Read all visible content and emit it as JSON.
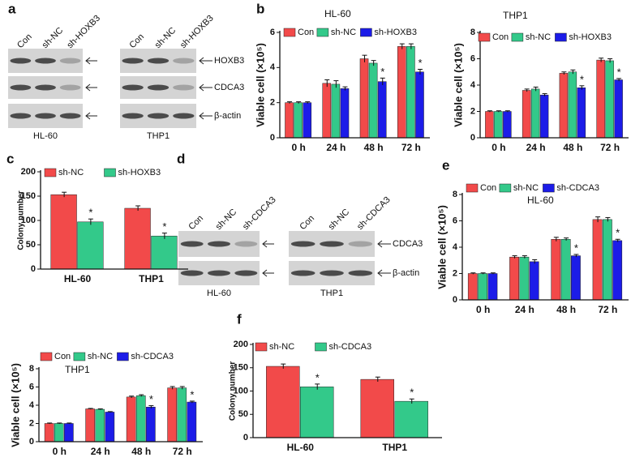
{
  "panel_labels": [
    "a",
    "b",
    "c",
    "d",
    "e",
    "f"
  ],
  "blot_a": {
    "lanes": [
      "Con",
      "sh-NC",
      "sh-HOXB3"
    ],
    "bands": [
      "HOXB3",
      "CDCA3",
      "β-actin"
    ],
    "cell_lines": [
      "HL-60",
      "THP1"
    ]
  },
  "blot_d": {
    "lanes": [
      "Con",
      "sh-NC",
      "sh-CDCA3"
    ],
    "bands": [
      "CDCA3",
      "β-actin"
    ],
    "cell_lines": [
      "HL-60",
      "THP1"
    ]
  },
  "chart_data": [
    {
      "type": "bar",
      "title": "HL-60",
      "y_label": "Viable cell (×10⁵)",
      "categories": [
        "0 h",
        "24 h",
        "48 h",
        "72 h"
      ],
      "ylim": [
        0,
        6
      ],
      "yticks": [
        0,
        2,
        4,
        6
      ],
      "series": [
        {
          "name": "Con",
          "color": "#f24a4a",
          "values": [
            2,
            3.1,
            4.5,
            5.2
          ],
          "errors": [
            0.05,
            0.2,
            0.2,
            0.15
          ]
        },
        {
          "name": "sh-NC",
          "color": "#33c98a",
          "values": [
            2,
            3.05,
            4.25,
            5.2
          ],
          "errors": [
            0.05,
            0.2,
            0.15,
            0.15
          ]
        },
        {
          "name": "sh-HOXB3",
          "color": "#1c1ce8",
          "values": [
            2,
            2.8,
            3.2,
            3.75
          ],
          "errors": [
            0.05,
            0.1,
            0.2,
            0.15
          ],
          "significance": [
            null,
            null,
            "*",
            "*"
          ]
        }
      ]
    },
    {
      "type": "bar",
      "title": "THP1",
      "y_label": "Viable cell (×10⁵)",
      "categories": [
        "0 h",
        "24 h",
        "48 h",
        "72 h"
      ],
      "ylim": [
        0,
        8
      ],
      "yticks": [
        0,
        2,
        4,
        6,
        8
      ],
      "series": [
        {
          "name": "Con",
          "color": "#f24a4a",
          "values": [
            2,
            3.6,
            4.9,
            5.9
          ],
          "errors": [
            0.05,
            0.1,
            0.1,
            0.15
          ]
        },
        {
          "name": "sh-NC",
          "color": "#33c98a",
          "values": [
            2,
            3.7,
            5.0,
            5.85
          ],
          "errors": [
            0.05,
            0.15,
            0.15,
            0.15
          ]
        },
        {
          "name": "sh-HOXB3",
          "color": "#1c1ce8",
          "values": [
            2,
            3.25,
            3.8,
            4.4
          ],
          "errors": [
            0.05,
            0.1,
            0.15,
            0.1
          ],
          "significance": [
            null,
            null,
            "*",
            "*"
          ]
        }
      ]
    },
    {
      "type": "bar",
      "y_label": "Colony number",
      "categories": [
        "HL-60",
        "THP1"
      ],
      "ylim": [
        0,
        200
      ],
      "yticks": [
        0,
        50,
        100,
        150,
        200
      ],
      "series": [
        {
          "name": "sh-NC",
          "color": "#f24a4a",
          "values": [
            153,
            125
          ],
          "errors": [
            5,
            5
          ]
        },
        {
          "name": "sh-HOXB3",
          "color": "#33c98a",
          "values": [
            97,
            68
          ],
          "errors": [
            6,
            6
          ],
          "significance": [
            "*",
            "*"
          ]
        }
      ]
    },
    {
      "type": "bar",
      "title": "HL-60",
      "y_label": "Viable cell (×10⁵)",
      "categories": [
        "0 h",
        "24 h",
        "48 h",
        "72 h"
      ],
      "ylim": [
        0,
        8
      ],
      "yticks": [
        0,
        2,
        4,
        6,
        8
      ],
      "series": [
        {
          "name": "Con",
          "color": "#f24a4a",
          "values": [
            2,
            3.25,
            4.6,
            6.1
          ],
          "errors": [
            0.05,
            0.1,
            0.15,
            0.2
          ]
        },
        {
          "name": "sh-NC",
          "color": "#33c98a",
          "values": [
            2,
            3.25,
            4.6,
            6.1
          ],
          "errors": [
            0.05,
            0.1,
            0.1,
            0.15
          ]
        },
        {
          "name": "sh-CDCA3",
          "color": "#1c1ce8",
          "values": [
            2,
            2.9,
            3.35,
            4.5
          ],
          "errors": [
            0.05,
            0.15,
            0.1,
            0.1
          ],
          "significance": [
            null,
            null,
            "*",
            "*"
          ]
        }
      ]
    },
    {
      "type": "bar",
      "title": "THP1",
      "y_label": "Viable cell (×10⁵)",
      "categories": [
        "0 h",
        "24 h",
        "48 h",
        "72 h"
      ],
      "ylim": [
        0,
        8
      ],
      "yticks": [
        0,
        2,
        4,
        6,
        8
      ],
      "series": [
        {
          "name": "Con",
          "color": "#f24a4a",
          "values": [
            2,
            3.6,
            4.9,
            5.9
          ],
          "errors": [
            0.05,
            0.05,
            0.1,
            0.15
          ]
        },
        {
          "name": "sh-NC",
          "color": "#33c98a",
          "values": [
            2,
            3.55,
            5.05,
            5.9
          ],
          "errors": [
            0.05,
            0.05,
            0.1,
            0.15
          ]
        },
        {
          "name": "sh-CDCA3",
          "color": "#1c1ce8",
          "values": [
            2,
            3.25,
            3.8,
            4.35
          ],
          "errors": [
            0.05,
            0.05,
            0.15,
            0.1
          ],
          "significance": [
            null,
            null,
            "*",
            "*"
          ]
        }
      ]
    },
    {
      "type": "bar",
      "y_label": "Colony number",
      "categories": [
        "HL-60",
        "THP1"
      ],
      "ylim": [
        0,
        200
      ],
      "yticks": [
        0,
        50,
        100,
        150,
        200
      ],
      "series": [
        {
          "name": "sh-NC",
          "color": "#f24a4a",
          "values": [
            153,
            125
          ],
          "errors": [
            5,
            5
          ]
        },
        {
          "name": "sh-CDCA3",
          "color": "#33c98a",
          "values": [
            109,
            78
          ],
          "errors": [
            6,
            5
          ],
          "significance": [
            "*",
            "*"
          ]
        }
      ]
    }
  ]
}
